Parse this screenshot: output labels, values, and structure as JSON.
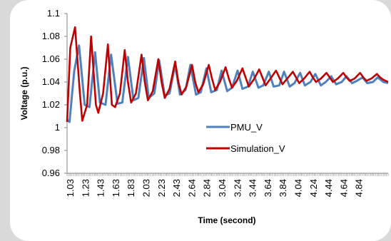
{
  "chart_data": {
    "type": "line",
    "xlabel": "Time (second)",
    "ylabel": "Voltage (p.u.)",
    "ylim": [
      0.96,
      1.1
    ],
    "xlim": [
      1.03,
      5.04
    ],
    "y_ticks": [
      "0.96",
      "0.98",
      "1",
      "1.02",
      "1.04",
      "1.06",
      "1.08",
      "1.1"
    ],
    "x_ticks": [
      "1.03",
      "1.23",
      "1.43",
      "1.63",
      "1.83",
      "2.03",
      "2.23",
      "2.43",
      "2.64",
      "2.84",
      "3.04",
      "3.24",
      "3.44",
      "3.64",
      "3.84",
      "4.04",
      "4.24",
      "4.44",
      "4.64",
      "4.84"
    ],
    "legend_position": "right-center",
    "grid": false,
    "series": [
      {
        "name": "PMU_V",
        "color": "#4f81bd",
        "x": [
          1.03,
          1.06,
          1.12,
          1.18,
          1.25,
          1.31,
          1.38,
          1.44,
          1.51,
          1.58,
          1.66,
          1.72,
          1.79,
          1.86,
          1.92,
          1.99,
          2.05,
          2.12,
          2.18,
          2.25,
          2.31,
          2.38,
          2.44,
          2.51,
          2.57,
          2.64,
          2.7,
          2.77,
          2.83,
          2.9,
          2.96,
          3.03,
          3.09,
          3.16,
          3.22,
          3.29,
          3.35,
          3.42,
          3.48,
          3.55,
          3.61,
          3.68,
          3.74,
          3.81,
          3.87,
          3.94,
          4.0,
          4.07,
          4.13,
          4.2,
          4.26,
          4.33,
          4.39,
          4.46,
          4.52,
          4.59,
          4.65,
          4.72,
          4.78,
          4.85,
          4.91,
          4.98,
          5.04
        ],
        "y": [
          1.007,
          1.005,
          1.05,
          1.072,
          1.02,
          1.018,
          1.066,
          1.022,
          1.02,
          1.064,
          1.021,
          1.022,
          1.062,
          1.024,
          1.026,
          1.061,
          1.026,
          1.03,
          1.059,
          1.028,
          1.03,
          1.055,
          1.029,
          1.033,
          1.055,
          1.029,
          1.031,
          1.052,
          1.031,
          1.033,
          1.05,
          1.032,
          1.035,
          1.05,
          1.034,
          1.036,
          1.049,
          1.035,
          1.037,
          1.049,
          1.036,
          1.037,
          1.049,
          1.036,
          1.039,
          1.048,
          1.037,
          1.04,
          1.047,
          1.037,
          1.04,
          1.045,
          1.038,
          1.04,
          1.045,
          1.039,
          1.041,
          1.044,
          1.039,
          1.04,
          1.044,
          1.04,
          1.039
        ]
      },
      {
        "name": "Simulation_V",
        "color": "#c00000",
        "x": [
          1.03,
          1.07,
          1.13,
          1.19,
          1.22,
          1.28,
          1.33,
          1.39,
          1.42,
          1.48,
          1.54,
          1.59,
          1.63,
          1.69,
          1.75,
          1.79,
          1.83,
          1.89,
          1.96,
          2.0,
          2.04,
          2.1,
          2.17,
          2.21,
          2.25,
          2.31,
          2.38,
          2.42,
          2.46,
          2.52,
          2.59,
          2.63,
          2.67,
          2.73,
          2.8,
          2.84,
          2.88,
          2.94,
          3.01,
          3.05,
          3.09,
          3.15,
          3.22,
          3.26,
          3.3,
          3.36,
          3.43,
          3.47,
          3.51,
          3.57,
          3.64,
          3.68,
          3.72,
          3.78,
          3.85,
          3.89,
          3.93,
          3.99,
          4.06,
          4.1,
          4.14,
          4.2,
          4.27,
          4.31,
          4.35,
          4.41,
          4.48,
          4.52,
          4.56,
          4.62,
          4.69,
          4.73,
          4.77,
          4.83,
          4.9,
          4.94,
          4.98,
          5.04
        ],
        "y": [
          1.005,
          1.07,
          1.088,
          1.03,
          1.006,
          1.02,
          1.08,
          1.02,
          1.013,
          1.03,
          1.073,
          1.02,
          1.018,
          1.03,
          1.068,
          1.04,
          1.022,
          1.03,
          1.064,
          1.04,
          1.024,
          1.032,
          1.06,
          1.04,
          1.026,
          1.034,
          1.058,
          1.04,
          1.029,
          1.036,
          1.055,
          1.04,
          1.031,
          1.038,
          1.055,
          1.043,
          1.033,
          1.04,
          1.053,
          1.043,
          1.035,
          1.041,
          1.052,
          1.044,
          1.036,
          1.042,
          1.051,
          1.044,
          1.037,
          1.043,
          1.05,
          1.044,
          1.038,
          1.043,
          1.049,
          1.044,
          1.039,
          1.043,
          1.049,
          1.044,
          1.04,
          1.043,
          1.048,
          1.044,
          1.04,
          1.043,
          1.048,
          1.044,
          1.041,
          1.043,
          1.048,
          1.044,
          1.041,
          1.043,
          1.047,
          1.044,
          1.042,
          1.04
        ]
      }
    ]
  }
}
